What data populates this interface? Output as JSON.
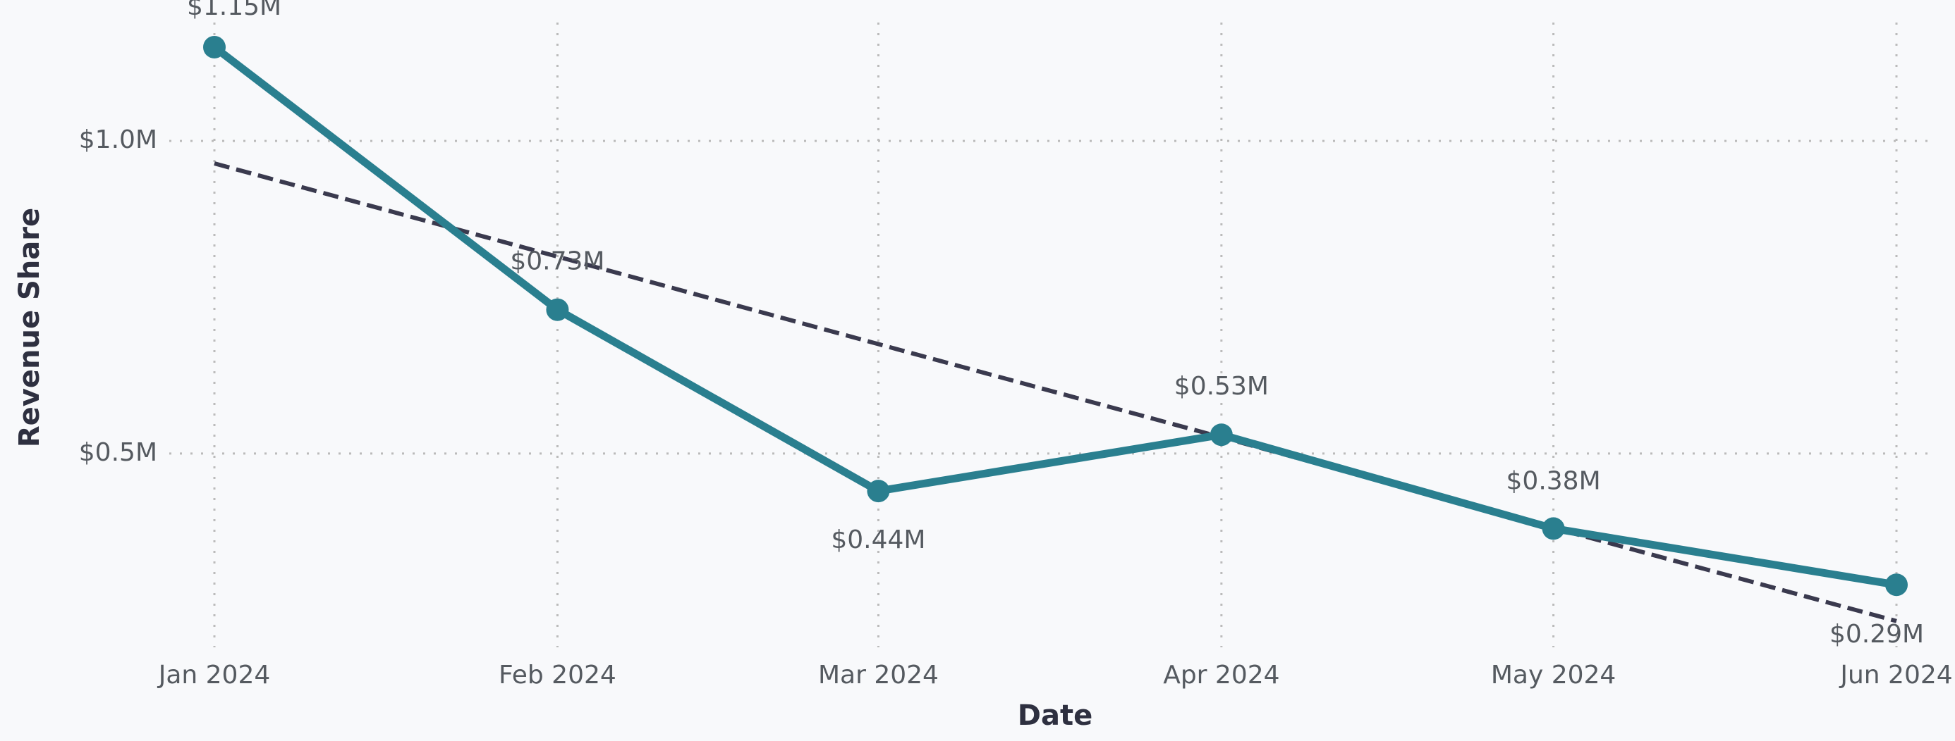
{
  "chart_data": {
    "type": "line",
    "xlabel": "Date",
    "ylabel": "Revenue Share",
    "x": [
      "2024-01",
      "2024-02",
      "2024-03",
      "2024-04",
      "2024-05",
      "2024-06"
    ],
    "xlim": [
      "2024-01",
      "2024-06"
    ],
    "xticks": [
      {
        "value": "2024-01",
        "label": "Jan 2024"
      },
      {
        "value": "2024-02",
        "label": "Feb 2024"
      },
      {
        "value": "2024-03",
        "label": "Mar 2024"
      },
      {
        "value": "2024-04",
        "label": "Apr 2024"
      },
      {
        "value": "2024-05",
        "label": "May 2024"
      },
      {
        "value": "2024-06",
        "label": "Jun 2024"
      }
    ],
    "ylim": [
      190000,
      1195000
    ],
    "yticks": [
      {
        "value": 500000,
        "label": "$0.5M"
      },
      {
        "value": 1000000,
        "label": "$1.0M"
      }
    ],
    "grid": true,
    "series": [
      {
        "color": "#2a7f8f",
        "values": [
          1150000,
          730000,
          440000,
          530000,
          380000,
          290000
        ],
        "value_labels": [
          "$1.15M",
          "$0.73M",
          "$0.44M",
          "$0.53M",
          "$0.38M",
          "$0.29M"
        ]
      }
    ],
    "trend": {
      "color": "#3a3a4e",
      "values": [
        964000,
        815000,
        675000,
        526000,
        381000,
        232000
      ]
    }
  }
}
